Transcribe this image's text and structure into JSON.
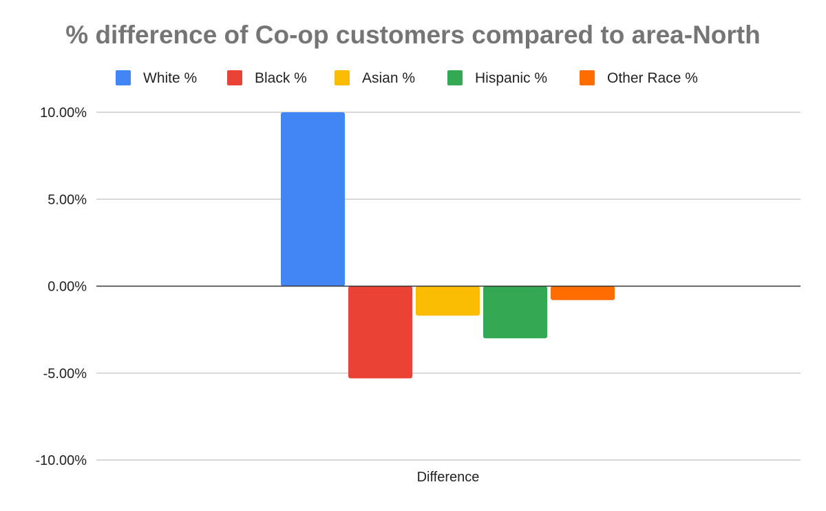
{
  "chart_data": {
    "type": "bar",
    "title": "% difference of Co-op customers compared to area-North",
    "categories": [
      "Difference"
    ],
    "series": [
      {
        "name": "White %",
        "color": "#4285f4",
        "values": [
          10.0
        ]
      },
      {
        "name": "Black %",
        "color": "#ea4335",
        "values": [
          -5.3
        ]
      },
      {
        "name": "Asian %",
        "color": "#fbbc04",
        "values": [
          -1.7
        ]
      },
      {
        "name": "Hispanic %",
        "color": "#34a853",
        "values": [
          -3.0
        ]
      },
      {
        "name": "Other Race %",
        "color": "#ff6d01",
        "values": [
          -0.8
        ]
      }
    ],
    "yticks": [
      "10.00%",
      "5.00%",
      "0.00%",
      "-5.00%",
      "-10.00%"
    ],
    "ytick_values": [
      10,
      5,
      0,
      -5,
      -10
    ],
    "ylim": [
      -10,
      10
    ],
    "xlabel": "",
    "ylabel": "",
    "legend": "top",
    "grid": true
  }
}
